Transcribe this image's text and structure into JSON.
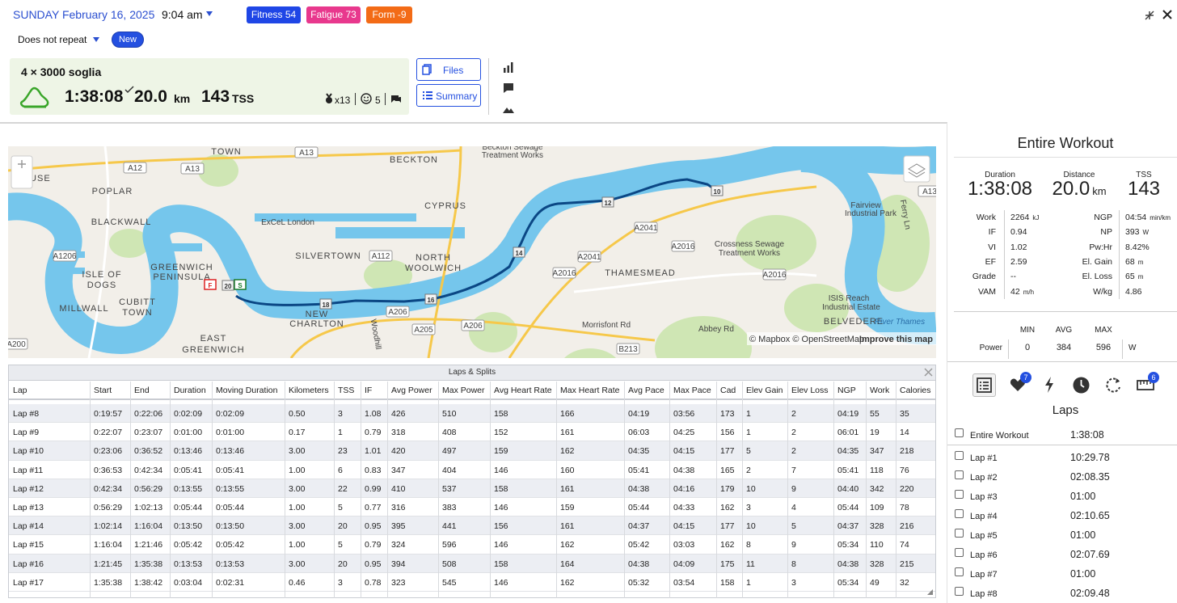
{
  "header": {
    "date": "SUNDAY February 16, 2025",
    "time": "9:04 am",
    "badges": [
      "Fitness 54",
      "Fatigue 73",
      "Form -9"
    ],
    "repeat": "Does not repeat",
    "new_button": "New"
  },
  "workout": {
    "title": "4 × 3000 soglia",
    "duration": "1:38:08",
    "distance": "20.0",
    "distance_unit": "km",
    "tss": "143",
    "tss_unit": "TSS",
    "medals": "x13",
    "comments": "5",
    "buttons": [
      "Files",
      "Summary"
    ]
  },
  "map": {
    "labels": [
      "TOWN",
      "A13",
      "BECKTON",
      "Beckton Sewage",
      "Treatment Works",
      "A12",
      "A13",
      "MOUSE",
      "POPLAR",
      "CYPRUS",
      "ExCeL London",
      "BLACKWALL",
      "A1206",
      "SILVERTOWN",
      "A112",
      "NORTH",
      "WOOLWICH",
      "ISLE OF",
      "DOGS",
      "GREENWICH",
      "PENINSULA",
      "CUBITT",
      "TOWN",
      "MILLWALL",
      "EAST",
      "GREENWICH",
      "NEW",
      "CHARLTON",
      "A206",
      "A205",
      "A206",
      "Woodhill",
      "B213",
      "A2041",
      "A2041",
      "A2016",
      "A2016",
      "THAMESMEAD",
      "Crossness Sewage",
      "Treatment Works",
      "A2016",
      "Fairview",
      "Industrial Park",
      "ISIS Reach",
      "Industrial Estate",
      "BELVEDERE",
      "River Thames",
      "Abbey Rd",
      "Morrisfont Rd",
      "Ferry Ln",
      "A200",
      "A13"
    ],
    "markers": [
      "10",
      "12",
      "14",
      "16",
      "18",
      "20",
      "F",
      "S"
    ],
    "attribution": "© Mapbox © OpenStreetMap",
    "improve": "Improve this map"
  },
  "laps_table": {
    "title": "Laps & Splits",
    "columns": [
      "Lap",
      "Start",
      "End",
      "Duration",
      "Moving Duration",
      "Kilometers",
      "TSS",
      "IF",
      "Avg Power",
      "Max Power",
      "Avg Heart Rate",
      "Max Heart Rate",
      "Avg Pace",
      "Max Pace",
      "Cad",
      "Elev Gain",
      "Elev Loss",
      "NGP",
      "Work",
      "Calories"
    ],
    "rows": [
      [
        "Lap #8",
        "0:19:57",
        "0:22:06",
        "0:02:09",
        "0:02:09",
        "0.50",
        "3",
        "1.08",
        "426",
        "510",
        "158",
        "166",
        "04:19",
        "03:56",
        "173",
        "1",
        "2",
        "04:19",
        "55",
        "35"
      ],
      [
        "Lap #9",
        "0:22:07",
        "0:23:07",
        "0:01:00",
        "0:01:00",
        "0.17",
        "1",
        "0.79",
        "318",
        "408",
        "152",
        "161",
        "06:03",
        "04:25",
        "156",
        "1",
        "2",
        "06:01",
        "19",
        "14"
      ],
      [
        "Lap #10",
        "0:23:06",
        "0:36:52",
        "0:13:46",
        "0:13:46",
        "3.00",
        "23",
        "1.01",
        "420",
        "497",
        "159",
        "162",
        "04:35",
        "04:15",
        "177",
        "5",
        "2",
        "04:35",
        "347",
        "218"
      ],
      [
        "Lap #11",
        "0:36:53",
        "0:42:34",
        "0:05:41",
        "0:05:41",
        "1.00",
        "6",
        "0.83",
        "347",
        "404",
        "146",
        "160",
        "05:41",
        "04:38",
        "165",
        "2",
        "7",
        "05:41",
        "118",
        "76"
      ],
      [
        "Lap #12",
        "0:42:34",
        "0:56:29",
        "0:13:55",
        "0:13:55",
        "3.00",
        "22",
        "0.99",
        "410",
        "537",
        "158",
        "161",
        "04:38",
        "04:16",
        "179",
        "10",
        "9",
        "04:40",
        "342",
        "220"
      ],
      [
        "Lap #13",
        "0:56:29",
        "1:02:13",
        "0:05:44",
        "0:05:44",
        "1.00",
        "5",
        "0.77",
        "316",
        "383",
        "146",
        "159",
        "05:44",
        "04:33",
        "162",
        "3",
        "4",
        "05:44",
        "109",
        "78"
      ],
      [
        "Lap #14",
        "1:02:14",
        "1:16:04",
        "0:13:50",
        "0:13:50",
        "3.00",
        "20",
        "0.95",
        "395",
        "441",
        "156",
        "161",
        "04:37",
        "04:15",
        "177",
        "10",
        "5",
        "04:37",
        "328",
        "216"
      ],
      [
        "Lap #15",
        "1:16:04",
        "1:21:46",
        "0:05:42",
        "0:05:42",
        "1.00",
        "5",
        "0.79",
        "324",
        "596",
        "146",
        "162",
        "05:42",
        "03:03",
        "162",
        "8",
        "9",
        "05:34",
        "110",
        "74"
      ],
      [
        "Lap #16",
        "1:21:45",
        "1:35:38",
        "0:13:53",
        "0:13:53",
        "3.00",
        "20",
        "0.95",
        "394",
        "508",
        "158",
        "164",
        "04:38",
        "04:09",
        "175",
        "11",
        "8",
        "04:38",
        "328",
        "215"
      ],
      [
        "Lap #17",
        "1:35:38",
        "1:38:42",
        "0:03:04",
        "0:02:31",
        "0.46",
        "3",
        "0.78",
        "323",
        "545",
        "146",
        "162",
        "05:32",
        "03:54",
        "158",
        "1",
        "3",
        "05:34",
        "49",
        "32"
      ]
    ]
  },
  "summary": {
    "title": "Entire Workout",
    "headline": [
      {
        "label": "Duration",
        "value": "1:38:08"
      },
      {
        "label": "Distance",
        "value": "20.0",
        "unit": "km"
      },
      {
        "label": "TSS",
        "value": "143"
      }
    ],
    "stats_left": [
      {
        "label": "Work",
        "value": "2264",
        "unit": "kJ"
      },
      {
        "label": "IF",
        "value": "0.94"
      },
      {
        "label": "VI",
        "value": "1.02"
      },
      {
        "label": "EF",
        "value": "2.59"
      },
      {
        "label": "Grade",
        "value": "--"
      },
      {
        "label": "VAM",
        "value": "42",
        "unit": "m/h"
      }
    ],
    "stats_right": [
      {
        "label": "NGP",
        "value": "04:54",
        "unit": "min/km"
      },
      {
        "label": "NP",
        "value": "393",
        "unit": "W"
      },
      {
        "label": "Pw:Hr",
        "value": "8.42%"
      },
      {
        "label": "El. Gain",
        "value": "68",
        "unit": "m"
      },
      {
        "label": "El. Loss",
        "value": "65",
        "unit": "m"
      },
      {
        "label": "W/kg",
        "value": "4.86"
      }
    ],
    "power": {
      "headers": [
        "MIN",
        "AVG",
        "MAX"
      ],
      "label": "Power",
      "values": [
        "0",
        "384",
        "596"
      ],
      "unit": "W"
    }
  },
  "laps_panel": {
    "title": "Laps",
    "tab_badges": [
      "7",
      "6"
    ],
    "items": [
      {
        "name": "Entire Workout",
        "time": "1:38:08"
      },
      {
        "name": "Lap #1",
        "time": "10:29.78"
      },
      {
        "name": "Lap #2",
        "time": "02:08.35"
      },
      {
        "name": "Lap #3",
        "time": "01:00"
      },
      {
        "name": "Lap #4",
        "time": "02:10.65"
      },
      {
        "name": "Lap #5",
        "time": "01:00"
      },
      {
        "name": "Lap #6",
        "time": "02:07.69"
      },
      {
        "name": "Lap #7",
        "time": "01:00"
      },
      {
        "name": "Lap #8",
        "time": "02:09.48"
      }
    ]
  }
}
